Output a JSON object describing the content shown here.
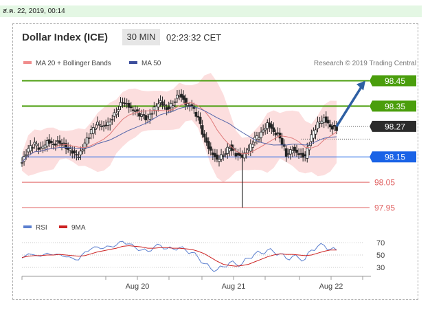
{
  "header": {
    "date_stamp": "ส.ค. 22, 2019, 00:14",
    "title": "Dollar Index (ICE)",
    "timeframe": "30 MIN",
    "time": "02:23:32 CET",
    "credit": "Research © 2019 Trading Central"
  },
  "legend": {
    "ma20": "MA 20 + Bollinger Bands",
    "ma50": "MA 50",
    "rsi": "RSI",
    "ma9": "9MA"
  },
  "colors": {
    "green": "#4a9e0c",
    "blue": "#1a63e6",
    "red": "#e06060",
    "band": "#fbd3d3",
    "ma20": "#e07a7a",
    "ma50": "#5566aa",
    "arrow": "#2e5fa3",
    "candle": "#222222",
    "rsi": "#5b7fcf",
    "ma9": "#cc2222"
  },
  "chart_data": [
    {
      "type": "candlestick",
      "ylim": [
        97.92,
        98.5
      ],
      "x_ticks": [
        "Aug 20",
        "Aug 21",
        "Aug 22"
      ],
      "levels": [
        {
          "value": 98.45,
          "label": "98.45",
          "style": "green-box"
        },
        {
          "value": 98.35,
          "label": "98.35",
          "style": "green-box"
        },
        {
          "value": 98.27,
          "label": "98.27",
          "style": "dark-box"
        },
        {
          "value": 98.15,
          "label": "98.15",
          "style": "blue-box"
        },
        {
          "value": 98.05,
          "label": "98.05",
          "style": "red-text"
        },
        {
          "value": 97.95,
          "label": "97.95",
          "style": "red-text"
        }
      ],
      "close_path": [
        98.13,
        98.18,
        98.2,
        98.18,
        98.21,
        98.2,
        98.21,
        98.19,
        98.17,
        98.15,
        98.2,
        98.25,
        98.28,
        98.27,
        98.29,
        98.33,
        98.37,
        98.35,
        98.33,
        98.31,
        98.3,
        98.34,
        98.37,
        98.34,
        98.36,
        98.4,
        98.36,
        98.35,
        98.3,
        98.22,
        98.17,
        98.14,
        98.16,
        98.19,
        98.16,
        98.15,
        98.18,
        98.22,
        98.24,
        98.28,
        98.25,
        98.23,
        98.16,
        98.18,
        98.16,
        98.15,
        98.23,
        98.28,
        98.3,
        98.27,
        98.26
      ],
      "spike_low": 97.95,
      "spike_index": 35,
      "forecast": {
        "from": 98.27,
        "to": 98.45
      }
    },
    {
      "type": "line",
      "title": "RSI",
      "ylim": [
        20,
        80
      ],
      "y_ticks": [
        70,
        50,
        30
      ],
      "series": [
        {
          "name": "RSI",
          "values": [
            45,
            52,
            50,
            48,
            53,
            50,
            51,
            47,
            45,
            42,
            55,
            60,
            63,
            61,
            64,
            66,
            72,
            68,
            62,
            58,
            56,
            63,
            66,
            60,
            60,
            62,
            58,
            54,
            46,
            36,
            28,
            26,
            31,
            38,
            35,
            36,
            45,
            52,
            53,
            58,
            55,
            52,
            44,
            48,
            45,
            43,
            58,
            64,
            66,
            59,
            58
          ]
        },
        {
          "name": "9MA",
          "values": [
            46,
            48,
            49,
            49,
            50,
            50,
            51,
            50,
            49,
            48,
            49,
            52,
            55,
            57,
            59,
            61,
            64,
            65,
            64,
            63,
            61,
            61,
            62,
            62,
            61,
            61,
            60,
            59,
            56,
            52,
            46,
            40,
            35,
            33,
            32,
            33,
            35,
            39,
            43,
            47,
            50,
            52,
            51,
            51,
            50,
            49,
            50,
            53,
            56,
            58,
            58
          ]
        }
      ]
    }
  ]
}
